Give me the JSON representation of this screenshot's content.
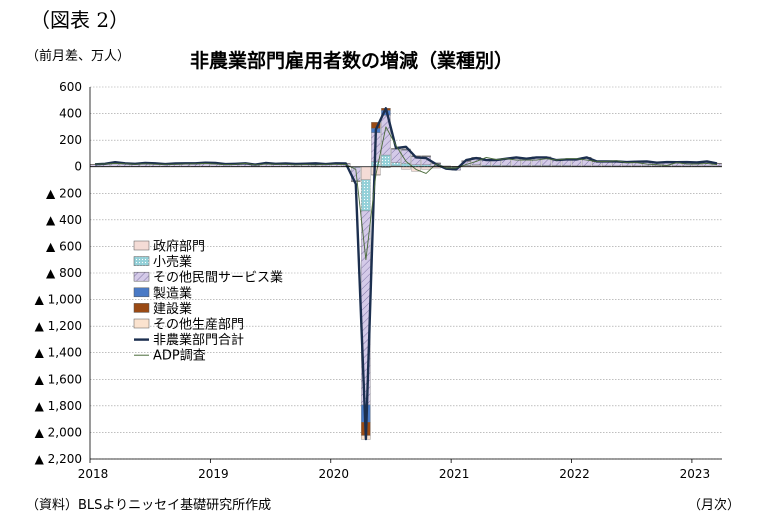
{
  "figure_label": "（図表 2）",
  "unit_label": "（前月差、万人）",
  "source": "（資料）BLSよりニッセイ基礎研究所作成",
  "x_unit": "（月次）",
  "chart_data": {
    "type": "bar",
    "stacked": true,
    "title": "非農業部門雇用者数の増減（業種別）",
    "ylim": [
      -2200,
      600
    ],
    "yticks": [
      600,
      400,
      200,
      0,
      -200,
      -400,
      -600,
      -800,
      -1000,
      -1200,
      -1400,
      -1600,
      -1800,
      -2000,
      -2200
    ],
    "ytick_labels": [
      "600",
      "400",
      "200",
      "0",
      "▲ 200",
      "▲ 400",
      "▲ 600",
      "▲ 800",
      "▲ 1,000",
      "▲ 1,200",
      "▲ 1,400",
      "▲ 1,600",
      "▲ 1,800",
      "▲ 2,000",
      "▲ 2,200"
    ],
    "xtick_labels": [
      "2018",
      "2019",
      "2020",
      "2021",
      "2022",
      "2023"
    ],
    "months": 63,
    "start": "2018-01",
    "legend": [
      "政府部門",
      "小売業",
      "その他民間サービス業",
      "製造業",
      "建設業",
      "その他生産部門",
      "非農業部門合計",
      "ADP調査"
    ],
    "colors": {
      "gov": "#f4dcd6",
      "retail": "#93d0d8",
      "other_services": "#d4cae8",
      "manufacturing": "#4a7ac6",
      "construction": "#9a4a14",
      "other_production": "#fbe3cf",
      "total": "#1c2f4f",
      "adp": "#4a6b3a",
      "grid": "#999999"
    },
    "series": [
      {
        "name": "政府部門",
        "key": "gov",
        "values": [
          2,
          2,
          2,
          2,
          2,
          2,
          2,
          2,
          2,
          2,
          2,
          2,
          2,
          2,
          2,
          2,
          2,
          2,
          2,
          2,
          2,
          2,
          2,
          2,
          2,
          2,
          -1,
          -98,
          -59,
          -3,
          6,
          -20,
          -35,
          -20,
          -10,
          -2,
          -3,
          6,
          10,
          5,
          5,
          5,
          3,
          5,
          5,
          5,
          5,
          5,
          4,
          4,
          4,
          4,
          4,
          4,
          4,
          4,
          4,
          4,
          4,
          4,
          4,
          4,
          4
        ]
      },
      {
        "name": "小売業",
        "key": "retail",
        "values": [
          1,
          1,
          1,
          1,
          1,
          1,
          1,
          1,
          1,
          1,
          1,
          1,
          1,
          1,
          1,
          1,
          1,
          1,
          1,
          1,
          1,
          1,
          1,
          1,
          1,
          1,
          -5,
          -235,
          37,
          88,
          25,
          25,
          15,
          15,
          3,
          -2,
          -4,
          4,
          5,
          5,
          5,
          4,
          4,
          4,
          4,
          4,
          4,
          4,
          3,
          3,
          3,
          3,
          3,
          3,
          3,
          3,
          3,
          3,
          3,
          2,
          2,
          2,
          2
        ]
      },
      {
        "name": "その他民間サービス業",
        "key": "other_services",
        "values": [
          13,
          16,
          28,
          20,
          16,
          22,
          20,
          16,
          18,
          20,
          20,
          24,
          22,
          14,
          16,
          20,
          10,
          22,
          16,
          18,
          15,
          17,
          20,
          16,
          21,
          20,
          -100,
          -1460,
          220,
          300,
          102,
          100,
          60,
          60,
          20,
          -4,
          -20,
          30,
          50,
          40,
          40,
          50,
          60,
          50,
          60,
          60,
          40,
          45,
          45,
          60,
          30,
          30,
          30,
          25,
          28,
          30,
          20,
          25,
          24,
          25,
          22,
          30,
          18
        ]
      },
      {
        "name": "製造業",
        "key": "manufacturing",
        "values": [
          1,
          1,
          1,
          1,
          1,
          1,
          1,
          1,
          1,
          1,
          1,
          1,
          1,
          1,
          1,
          1,
          1,
          1,
          1,
          1,
          1,
          1,
          1,
          1,
          1,
          0,
          -2,
          -130,
          32,
          36,
          2,
          5,
          5,
          5,
          3,
          3,
          2,
          3,
          3,
          3,
          3,
          3,
          3,
          3,
          3,
          3,
          3,
          3,
          3,
          3,
          3,
          3,
          3,
          3,
          3,
          3,
          3,
          3,
          3,
          3,
          3,
          3,
          1
        ]
      },
      {
        "name": "建設業",
        "key": "construction",
        "values": [
          1,
          1,
          1,
          1,
          1,
          1,
          1,
          1,
          1,
          1,
          1,
          1,
          1,
          1,
          1,
          1,
          1,
          1,
          1,
          1,
          1,
          1,
          1,
          1,
          1,
          1,
          -2,
          -100,
          45,
          16,
          2,
          2,
          2,
          2,
          2,
          2,
          1,
          2,
          2,
          1,
          1,
          1,
          1,
          1,
          1,
          1,
          1,
          1,
          1,
          1,
          1,
          1,
          1,
          1,
          1,
          1,
          1,
          1,
          1,
          1,
          1,
          1,
          1
        ]
      },
      {
        "name": "その他生産部門",
        "key": "other_production",
        "values": [
          1,
          1,
          1,
          1,
          1,
          1,
          1,
          1,
          1,
          1,
          1,
          1,
          1,
          1,
          1,
          1,
          1,
          1,
          1,
          1,
          1,
          1,
          1,
          1,
          1,
          1,
          -2,
          -30,
          -5,
          -1,
          1,
          2,
          1,
          1,
          1,
          1,
          1,
          1,
          1,
          1,
          1,
          1,
          1,
          1,
          1,
          1,
          1,
          1,
          1,
          1,
          1,
          1,
          1,
          1,
          1,
          1,
          1,
          1,
          1,
          1,
          1,
          1,
          1
        ]
      },
      {
        "name": "非農業部門合計",
        "key": "total",
        "type": "line",
        "values": [
          18,
          22,
          34,
          26,
          22,
          28,
          26,
          20,
          24,
          26,
          26,
          30,
          28,
          20,
          22,
          26,
          16,
          28,
          22,
          24,
          21,
          23,
          26,
          20,
          26,
          25,
          -130,
          -2050,
          280,
          440,
          140,
          150,
          70,
          65,
          20,
          -15,
          -20,
          50,
          65,
          50,
          50,
          60,
          70,
          60,
          70,
          70,
          50,
          55,
          55,
          70,
          40,
          40,
          40,
          35,
          38,
          40,
          30,
          35,
          34,
          35,
          32,
          40,
          25
        ]
      },
      {
        "name": "ADP調査",
        "key": "adp",
        "type": "line",
        "values": [
          20,
          20,
          24,
          22,
          18,
          22,
          18,
          18,
          18,
          20,
          22,
          24,
          20,
          16,
          18,
          24,
          14,
          20,
          18,
          18,
          14,
          16,
          14,
          18,
          18,
          17,
          -20,
          -700,
          -60,
          300,
          160,
          40,
          -20,
          -50,
          20,
          -10,
          -10,
          17,
          40,
          70,
          54,
          60,
          50,
          50,
          50,
          60,
          50,
          60,
          60,
          50,
          40,
          40,
          45,
          30,
          30,
          20,
          15,
          10,
          30,
          20,
          20,
          25,
          15
        ]
      }
    ]
  }
}
